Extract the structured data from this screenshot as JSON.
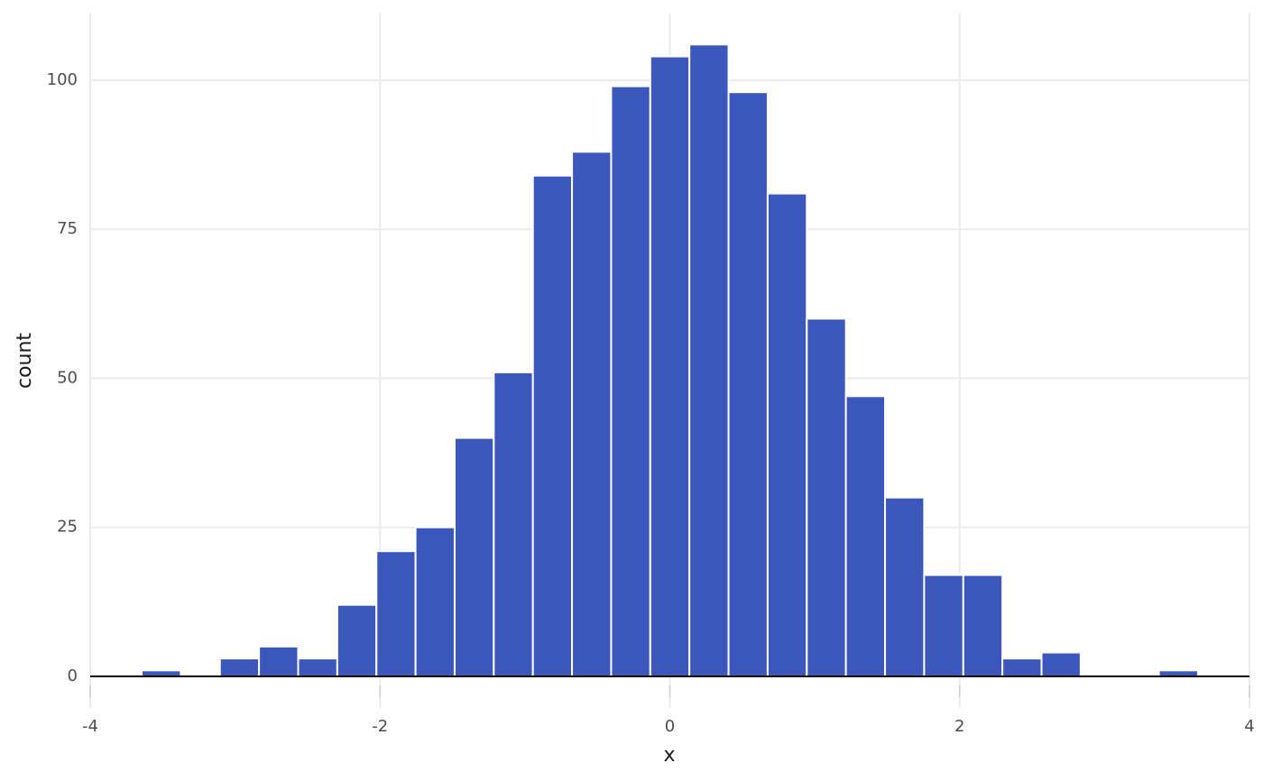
{
  "chart_data": {
    "type": "histogram",
    "x_label": "x",
    "y_label": "count",
    "bins": [
      -3.645,
      -3.375,
      -3.105,
      -2.835,
      -2.565,
      -2.295,
      -2.025,
      -1.755,
      -1.485,
      -1.215,
      -0.945,
      -0.675,
      -0.405,
      -0.135,
      0.135,
      0.405,
      0.675,
      0.945,
      1.215,
      1.485,
      1.755,
      2.025,
      2.295,
      2.565,
      2.835,
      3.105,
      3.375,
      3.645
    ],
    "counts": [
      1,
      0,
      3,
      5,
      3,
      12,
      21,
      25,
      40,
      51,
      84,
      88,
      99,
      104,
      106,
      98,
      81,
      60,
      47,
      30,
      17,
      17,
      3,
      4,
      0,
      0,
      1
    ],
    "color": "#3b57bc",
    "xlim": [
      -4,
      4
    ],
    "xticks": [
      -4,
      -2,
      0,
      2,
      4
    ],
    "ylim": [
      -5.3,
      111.3
    ],
    "yticks": [
      0,
      25,
      50,
      75,
      100
    ],
    "grid": true
  }
}
